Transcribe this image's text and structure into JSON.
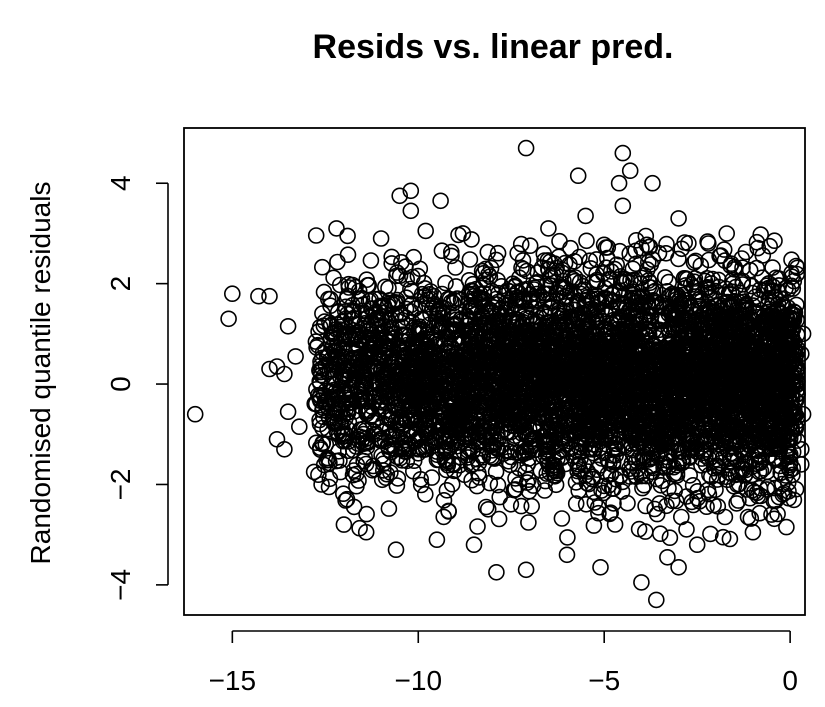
{
  "chart_data": {
    "type": "scatter",
    "title": "Resids vs. linear pred.",
    "xlabel": "",
    "ylabel": "Randomised quantile residuals",
    "xlim": [
      -16.3,
      0.4
    ],
    "ylim": [
      -4.6,
      5.1
    ],
    "xticks": [
      -15,
      -10,
      -5,
      0
    ],
    "yticks": [
      -4,
      -2,
      0,
      2,
      4
    ],
    "xtick_labels": [
      "−15",
      "−10",
      "−5",
      "0"
    ],
    "ytick_labels": [
      "−4",
      "−2",
      "0",
      "2",
      "4"
    ],
    "marker": "open-circle",
    "marker_color": "#000000",
    "points": [
      {
        "x": -16.0,
        "y": -0.6
      },
      {
        "x": -15.0,
        "y": 1.8
      },
      {
        "x": -15.1,
        "y": 1.3
      },
      {
        "x": -14.3,
        "y": 1.75
      },
      {
        "x": -14.0,
        "y": 1.75
      },
      {
        "x": -13.5,
        "y": 1.15
      },
      {
        "x": -14.0,
        "y": 0.3
      },
      {
        "x": -13.8,
        "y": 0.35
      },
      {
        "x": -13.6,
        "y": 0.2
      },
      {
        "x": -13.3,
        "y": 0.55
      },
      {
        "x": -13.8,
        "y": -1.1
      },
      {
        "x": -13.6,
        "y": -1.3
      },
      {
        "x": -13.5,
        "y": -0.55
      },
      {
        "x": -13.2,
        "y": -0.85
      },
      {
        "x": -12.8,
        "y": -1.75
      },
      {
        "x": -12.4,
        "y": -2.05
      },
      {
        "x": -12.2,
        "y": 3.1
      },
      {
        "x": -11.9,
        "y": 2.95
      },
      {
        "x": -10.5,
        "y": 3.75
      },
      {
        "x": -10.2,
        "y": 3.85
      },
      {
        "x": -10.2,
        "y": 3.45
      },
      {
        "x": -9.4,
        "y": 3.65
      },
      {
        "x": -7.1,
        "y": 4.7
      },
      {
        "x": -5.7,
        "y": 4.15
      },
      {
        "x": -4.5,
        "y": 4.6
      },
      {
        "x": -4.3,
        "y": 4.25
      },
      {
        "x": -4.6,
        "y": 4.0
      },
      {
        "x": -3.7,
        "y": 4.0
      },
      {
        "x": -4.5,
        "y": 3.55
      },
      {
        "x": -5.5,
        "y": 3.35
      },
      {
        "x": -7.9,
        "y": -3.75
      },
      {
        "x": -7.1,
        "y": -3.7
      },
      {
        "x": -5.1,
        "y": -3.65
      },
      {
        "x": -4.0,
        "y": -3.95
      },
      {
        "x": -3.6,
        "y": -4.3
      },
      {
        "x": -3.0,
        "y": -3.65
      },
      {
        "x": -3.3,
        "y": -3.45
      },
      {
        "x": -10.6,
        "y": -3.3
      },
      {
        "x": -11.4,
        "y": -2.95
      },
      {
        "x": -12.0,
        "y": -2.8
      },
      {
        "x": -12.6,
        "y": -2.0
      },
      {
        "x": -0.1,
        "y": -2.85
      },
      {
        "x": 0.3,
        "y": -1.3
      },
      {
        "x": 0.35,
        "y": -0.6
      },
      {
        "x": 0.3,
        "y": 0.6
      },
      {
        "x": 0.35,
        "y": 1.0
      },
      {
        "x": 0.1,
        "y": 2.05
      },
      {
        "x": -0.3,
        "y": 2.1
      },
      {
        "x": 0.3,
        "y": -1.6
      },
      {
        "x": 0.2,
        "y": -0.2
      },
      {
        "x": -0.2,
        "y": -2.2
      },
      {
        "x": -0.5,
        "y": -2.6
      },
      {
        "x": -1.0,
        "y": -2.95
      },
      {
        "x": -1.8,
        "y": -3.05
      },
      {
        "x": -2.5,
        "y": -3.2
      },
      {
        "x": -6.0,
        "y": -3.4
      },
      {
        "x": -8.5,
        "y": -3.2
      },
      {
        "x": -9.5,
        "y": -3.1
      },
      {
        "x": -11.0,
        "y": 2.9
      },
      {
        "x": -9.8,
        "y": 3.05
      },
      {
        "x": -8.8,
        "y": 3.0
      },
      {
        "x": -6.5,
        "y": 3.1
      },
      {
        "x": -3.0,
        "y": 3.3
      },
      {
        "x": -2.2,
        "y": 2.8
      },
      {
        "x": -1.3,
        "y": 2.5
      }
    ],
    "dense_region": {
      "x_range": [
        -12.8,
        0.2
      ],
      "y_mean": 0.1,
      "y_sd": 1.05
    },
    "grid": false,
    "legend": "none"
  }
}
